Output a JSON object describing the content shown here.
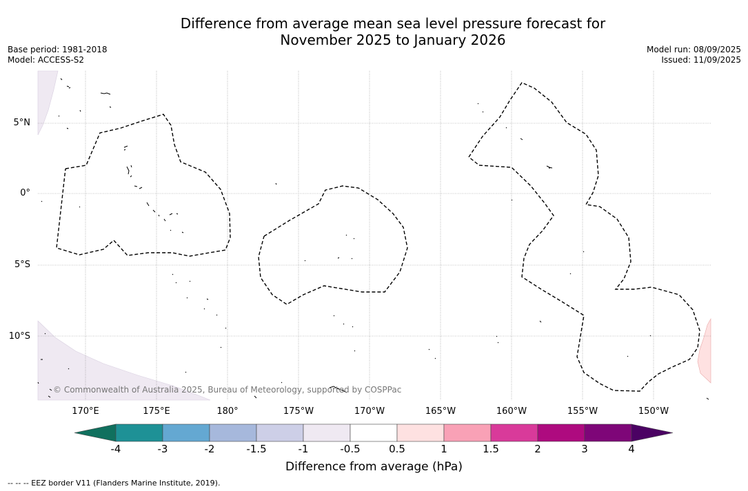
{
  "title_line1": "Difference from average mean sea level pressure forecast for",
  "title_line2": "November 2025 to January 2026",
  "base_period": "Base period: 1981-2018",
  "model": "Model: ACCESS-S2",
  "model_run": "Model run: 08/09/2025",
  "issued": "Issued: 11/09/2025",
  "lat_labels": [
    "5°N",
    "0°",
    "5°S",
    "10°S"
  ],
  "lon_labels": [
    "170°E",
    "175°E",
    "180°",
    "175°W",
    "170°W",
    "165°W",
    "160°W",
    "155°W",
    "150°W"
  ],
  "copyright": "© Commonwealth of Australia 2025, Bureau of Meteorology, supported by COSPPac",
  "colorbar": {
    "ticks": [
      "-4",
      "-3",
      "-2",
      "-1.5",
      "-1",
      "-0.5",
      "0.5",
      "1",
      "1.5",
      "2",
      "3",
      "4"
    ],
    "colors": [
      "#1e9196",
      "#64a8d2",
      "#a6b8dc",
      "#cdcfe7",
      "#efe9f2",
      "#ffffff",
      "#fee1e1",
      "#f9a1b6",
      "#d93a9a",
      "#ae0a7f",
      "#7e0678"
    ],
    "under_color": "#10705e",
    "over_color": "#4b0263",
    "title": "Difference from average (hPa)"
  },
  "footer_note": "--  --  -- EEZ border V11 (Flanders Marine Institute, 2019)."
}
